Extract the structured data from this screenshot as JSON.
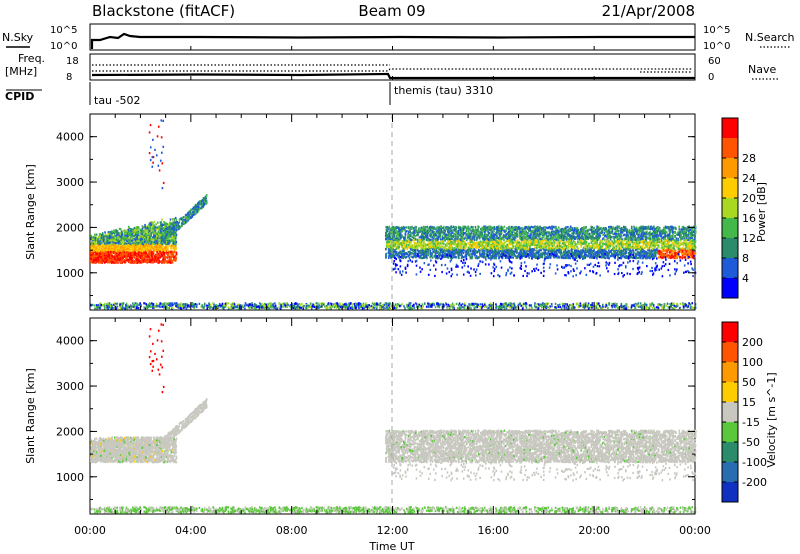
{
  "header": {
    "station": "Blackstone (fitACF)",
    "beam": "Beam 09",
    "date": "21/Apr/2008"
  },
  "top_panels": {
    "nsky_label": "N.Sky",
    "nsky_ticks": [
      "10^5",
      "10^0"
    ],
    "nsearch_label": "N.Search",
    "nsearch_ticks": [
      "10^5",
      "10^0"
    ],
    "freq_label": "Freq.",
    "freq_unit": "[MHz]",
    "freq_ticks": [
      "18",
      "8"
    ],
    "nave_label": "Nave",
    "nave_ticks": [
      "60",
      "0"
    ],
    "cpid_label": "CPID",
    "cpid_segments": [
      {
        "label": "tau -502",
        "start_hour": 0
      },
      {
        "label": "themis (tau) 3310",
        "start_hour": 12
      }
    ]
  },
  "chart_data": [
    {
      "type": "heatmap",
      "name": "power",
      "ylabel": "Slant Range [km]",
      "ylim": [
        180,
        4500
      ],
      "yticks": [
        "1000",
        "2000",
        "3000",
        "4000"
      ],
      "xlim_hours": [
        0,
        24
      ],
      "colorbar": {
        "label": "Power [dB]",
        "ticks": [
          "4",
          "8",
          "12",
          "16",
          "20",
          "24",
          "28"
        ],
        "colors": [
          "#0000ff",
          "#1e5bd8",
          "#2a8c6a",
          "#44b84a",
          "#a8d820",
          "#ffcc00",
          "#ff9900",
          "#ff5500",
          "#ff0000"
        ]
      }
    },
    {
      "type": "heatmap",
      "name": "velocity",
      "ylabel": "Slant Range [km]",
      "ylim": [
        180,
        4500
      ],
      "yticks": [
        "1000",
        "2000",
        "3000",
        "4000"
      ],
      "xlim_hours": [
        0,
        24
      ],
      "xlabel": "Time UT",
      "xticks": [
        "00:00",
        "04:00",
        "08:00",
        "12:00",
        "16:00",
        "20:00",
        "00:00"
      ],
      "colorbar": {
        "label": "Velocity [m s^-1]",
        "ticks": [
          "200",
          "100",
          "50",
          "15",
          "-15",
          "-50",
          "-100",
          "-200"
        ],
        "colors": [
          "#1030c0",
          "#2a6cb0",
          "#2a8c6a",
          "#5ac83a",
          "#c8c8c0",
          "#ffcc00",
          "#ff9900",
          "#ff5500",
          "#ff0000"
        ]
      }
    }
  ]
}
